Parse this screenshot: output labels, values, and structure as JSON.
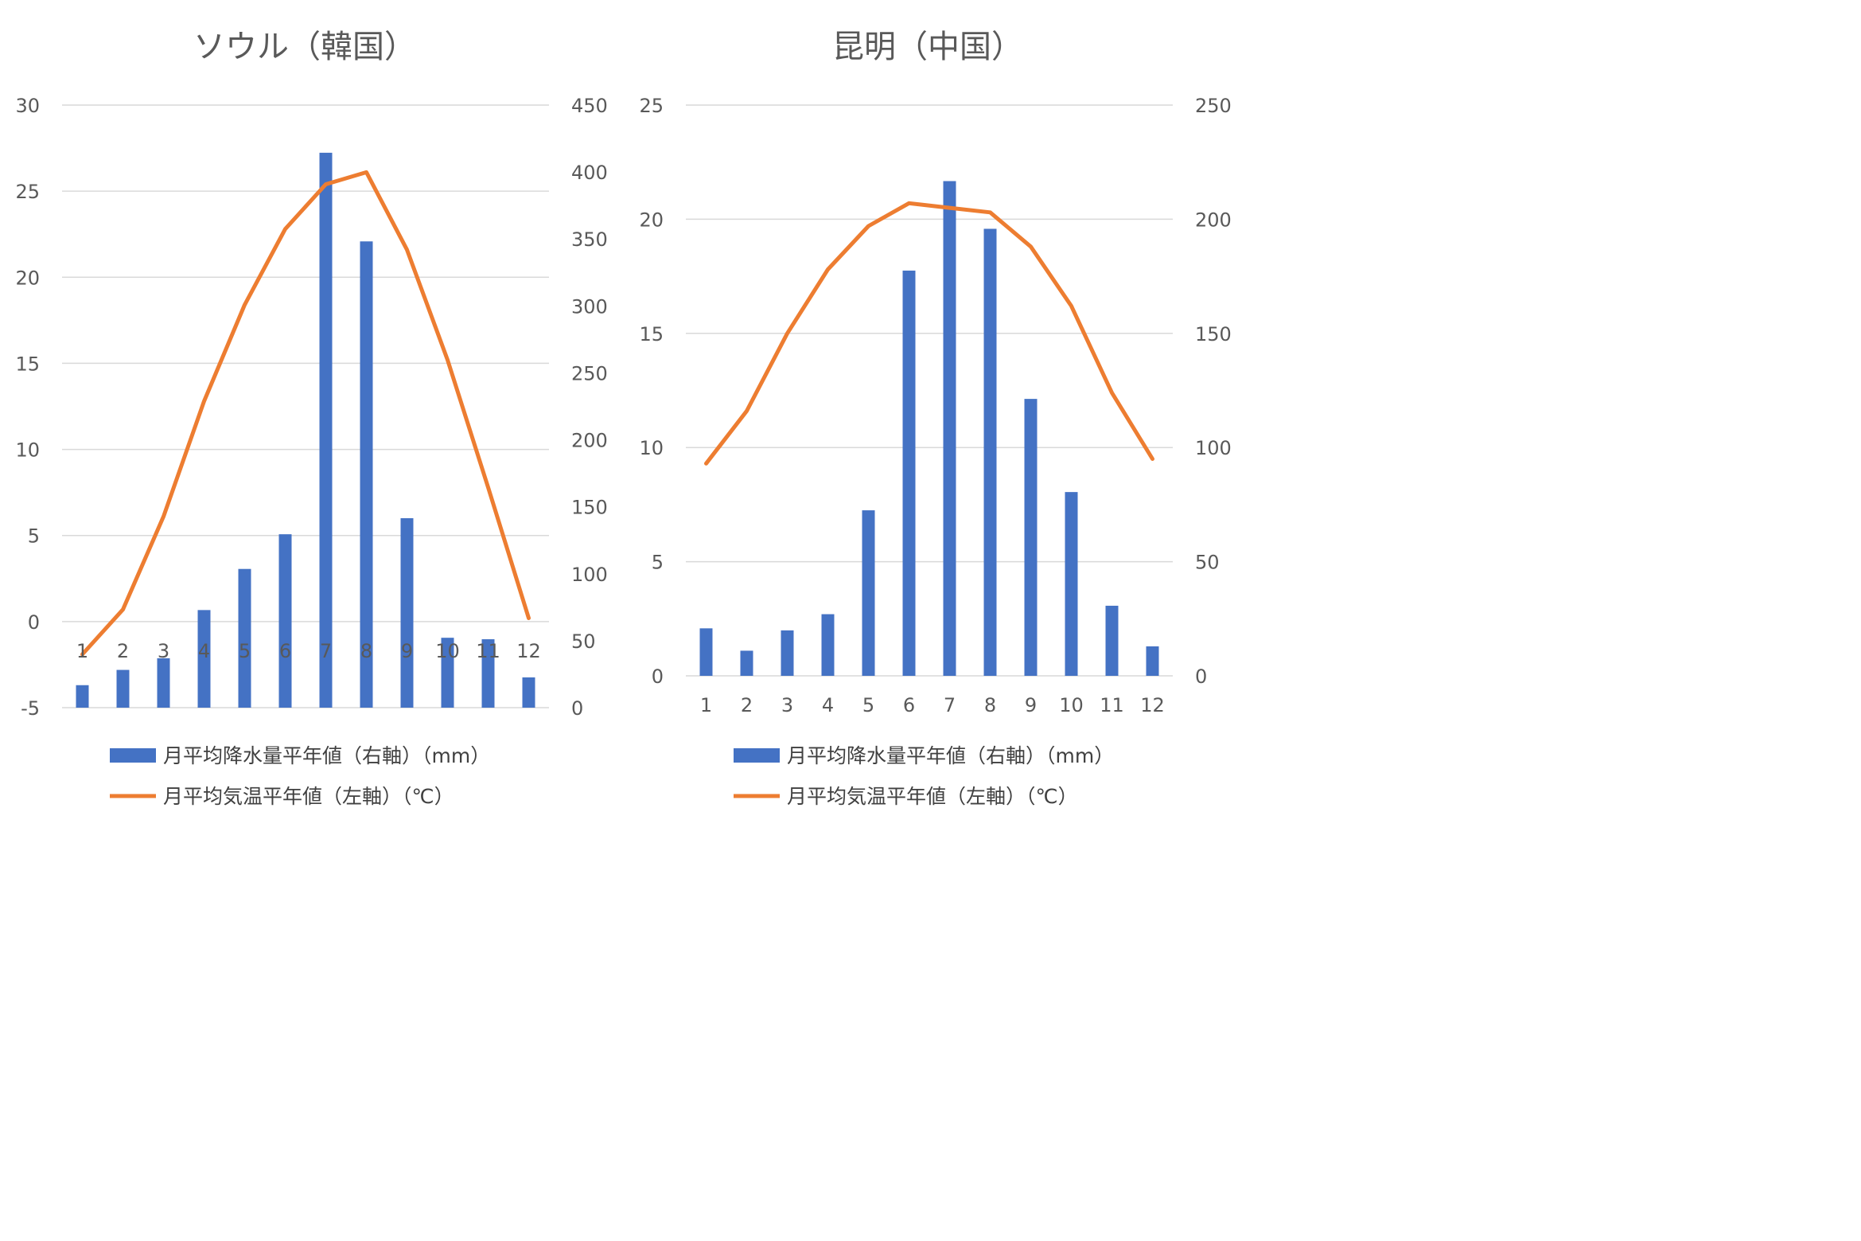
{
  "chart_data": [
    {
      "type": "bar+line",
      "title": "ソウル（韓国）",
      "categories": [
        "1",
        "2",
        "3",
        "4",
        "5",
        "6",
        "7",
        "8",
        "9",
        "10",
        "11",
        "12"
      ],
      "series": [
        {
          "name": "月平均降水量平年値（右軸）（mm）",
          "type": "bar",
          "axis": "right",
          "color": "#4472C4",
          "values": [
            16.8,
            28.2,
            36.9,
            72.9,
            103.6,
            129.5,
            414.4,
            348.2,
            141.5,
            52.2,
            51.1,
            22.6
          ]
        },
        {
          "name": "月平均気温平年値（左軸）（℃）",
          "type": "line",
          "axis": "left",
          "color": "#ED7D31",
          "values": [
            -1.9,
            0.7,
            6.1,
            12.8,
            18.4,
            22.8,
            25.4,
            26.1,
            21.6,
            15.2,
            7.8,
            0.2
          ]
        }
      ],
      "left_axis": {
        "min": -5,
        "max": 30,
        "step": 5,
        "ticks": [
          "-5",
          "0",
          "5",
          "10",
          "15",
          "20",
          "25",
          "30"
        ]
      },
      "right_axis": {
        "min": 0,
        "max": 450,
        "step": 50,
        "ticks": [
          "0",
          "50",
          "100",
          "150",
          "200",
          "250",
          "300",
          "350",
          "400",
          "450"
        ]
      },
      "legend": [
        "月平均降水量平年値（右軸）（mm）",
        "月平均気温平年値（左軸）（℃）"
      ],
      "category_labels_at": "y=0 line"
    },
    {
      "type": "bar+line",
      "title": "昆明（中国）",
      "categories": [
        "1",
        "2",
        "3",
        "4",
        "5",
        "6",
        "7",
        "8",
        "9",
        "10",
        "11",
        "12"
      ],
      "series": [
        {
          "name": "月平均降水量平年値（右軸）（mm）",
          "type": "bar",
          "axis": "right",
          "color": "#4472C4",
          "values": [
            20.8,
            11.0,
            19.9,
            27.0,
            72.5,
            177.5,
            216.7,
            195.8,
            121.3,
            80.5,
            30.7,
            12.9
          ]
        },
        {
          "name": "月平均気温平年値（左軸）（℃）",
          "type": "line",
          "axis": "left",
          "color": "#ED7D31",
          "values": [
            9.3,
            11.6,
            15.0,
            17.8,
            19.7,
            20.7,
            20.5,
            20.3,
            18.8,
            16.2,
            12.4,
            9.5
          ]
        }
      ],
      "left_axis": {
        "min": 0,
        "max": 25,
        "step": 5,
        "ticks": [
          "0",
          "5",
          "10",
          "15",
          "20",
          "25"
        ]
      },
      "right_axis": {
        "min": 0,
        "max": 250,
        "step": 50,
        "ticks": [
          "0",
          "50",
          "100",
          "150",
          "200",
          "250"
        ]
      },
      "legend": [
        "月平均降水量平年値（右軸）（mm）",
        "月平均気温平年値（左軸）（℃）"
      ],
      "category_labels_at": "bottom"
    }
  ]
}
